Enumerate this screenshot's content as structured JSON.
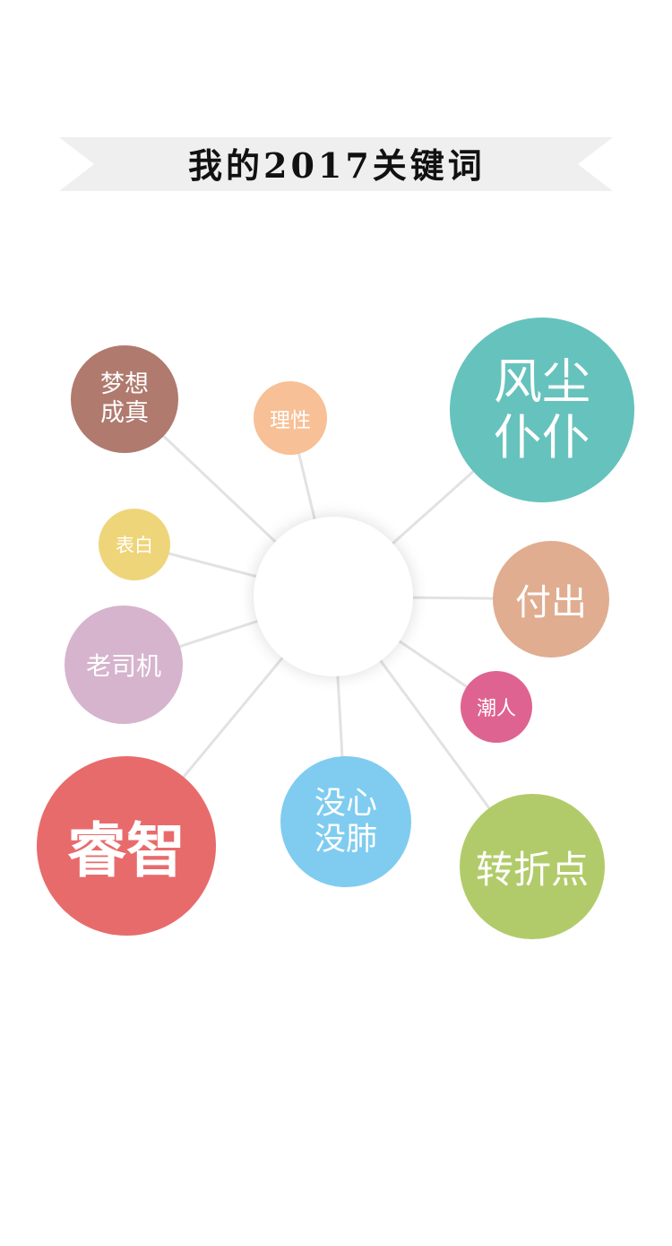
{
  "title": "我的2017关键词",
  "colors": {
    "banner": "#efefef",
    "connector": "#e2e2e2",
    "center": "#ffffff"
  },
  "keywords": [
    {
      "id": "mengxiang",
      "label": "梦想\n成真",
      "color": "#b07a6e"
    },
    {
      "id": "lixing",
      "label": "理性",
      "color": "#f7c096"
    },
    {
      "id": "fengchen",
      "label": "风尘\n仆仆",
      "color": "#66c2bd"
    },
    {
      "id": "biaobai",
      "label": "表白",
      "color": "#efd57a"
    },
    {
      "id": "fuchu",
      "label": "付出",
      "color": "#e0ad91"
    },
    {
      "id": "laosiji",
      "label": "老司机",
      "color": "#d6b4cd"
    },
    {
      "id": "chaoren",
      "label": "潮人",
      "color": "#df6390"
    },
    {
      "id": "ruizhi",
      "label": "睿智",
      "color": "#e86b6c"
    },
    {
      "id": "meixin",
      "label": "没心\n没肺",
      "color": "#7fccf0"
    },
    {
      "id": "zhuanzhe",
      "label": "转折点",
      "color": "#b2cb6a"
    }
  ]
}
